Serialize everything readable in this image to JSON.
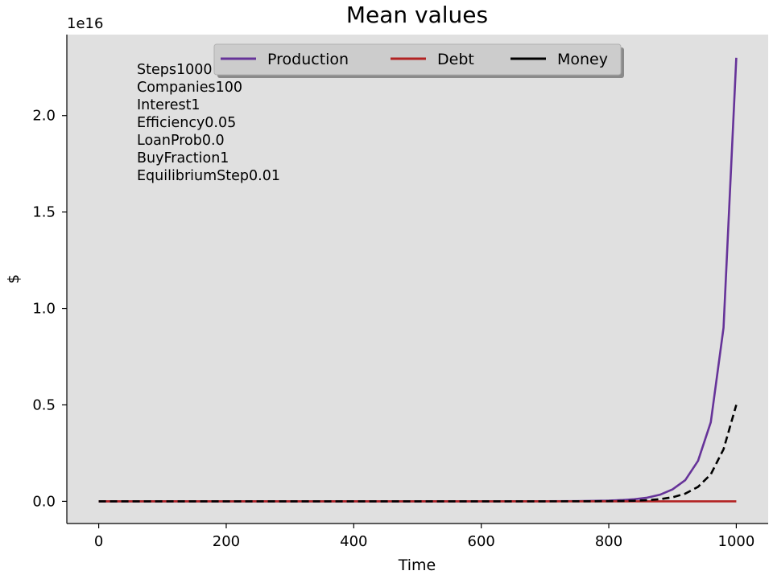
{
  "chart_data": {
    "type": "line",
    "title": "Mean values",
    "xlabel": "Time",
    "ylabel": "$",
    "offset_text": "1e16",
    "xlim": [
      -50,
      1050
    ],
    "ylim": [
      -0.115,
      2.42
    ],
    "xticks": [
      0,
      200,
      400,
      600,
      800,
      1000
    ],
    "xtick_labels": [
      "0",
      "200",
      "400",
      "600",
      "800",
      "1000"
    ],
    "yticks": [
      0.0,
      0.5,
      1.0,
      1.5,
      2.0
    ],
    "ytick_labels": [
      "0.0",
      "0.5",
      "1.0",
      "1.5",
      "2.0"
    ],
    "y_scale_multiplier": "1e16",
    "grid": false,
    "background": "#e0e0e0",
    "legend": {
      "placement": "top-center",
      "entries": [
        "Production",
        "Debt",
        "Money"
      ],
      "entry_colors": [
        "#663399",
        "#b22222",
        "#000000"
      ]
    },
    "annotations": [
      "Steps1000",
      "Companies100",
      "Interest1",
      "Efficiency0.05",
      "LoanProb0.0",
      "BuyFraction1",
      "EquilibriumStep0.01"
    ],
    "series": [
      {
        "name": "Production",
        "color": "#663399",
        "style": "solid",
        "x": [
          0,
          100,
          200,
          300,
          400,
          500,
          600,
          700,
          750,
          800,
          820,
          840,
          860,
          880,
          900,
          920,
          940,
          960,
          980,
          1000
        ],
        "y": [
          0,
          0,
          0,
          0,
          0,
          0,
          0,
          0.0005,
          0.0012,
          0.0038,
          0.0065,
          0.011,
          0.019,
          0.034,
          0.062,
          0.11,
          0.21,
          0.41,
          0.9,
          2.3
        ]
      },
      {
        "name": "Debt",
        "color": "#b22222",
        "style": "solid",
        "x": [
          0,
          200,
          400,
          600,
          800,
          1000
        ],
        "y": [
          0,
          0,
          0,
          0,
          0,
          0
        ]
      },
      {
        "name": "Money",
        "color": "#000000",
        "style": "dashed",
        "x": [
          0,
          100,
          200,
          300,
          400,
          500,
          600,
          700,
          750,
          800,
          820,
          840,
          860,
          880,
          900,
          920,
          940,
          960,
          980,
          1000
        ],
        "y": [
          0,
          0,
          0,
          0,
          0,
          0,
          0,
          0.0001,
          0.0003,
          0.0009,
          0.0016,
          0.003,
          0.006,
          0.011,
          0.021,
          0.04,
          0.075,
          0.14,
          0.27,
          0.5
        ]
      }
    ]
  }
}
